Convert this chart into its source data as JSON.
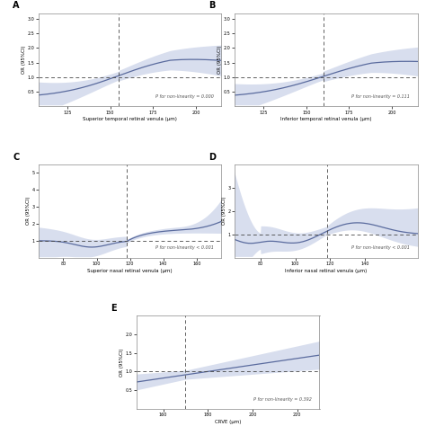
{
  "line_color": "#5a6b9e",
  "fill_color": "#b8c3e0",
  "fill_alpha": 0.55,
  "hline_color": "#444444",
  "vline_color": "#444444",
  "ylabel": "OR (95%CI)",
  "panels": [
    {
      "label": "A",
      "xlabel": "Superior temporal retinal venula (μm)",
      "pval": "P for non-linearity = 0.000",
      "xmin": 108,
      "xmax": 215,
      "xticks": [
        125,
        150,
        175,
        200
      ],
      "ymin": 0.0,
      "ymax": 3.2,
      "yticks": [
        0.5,
        1.0,
        1.5,
        2.0,
        2.5,
        3.0
      ],
      "vline_x": 155,
      "hline_y": 1.0,
      "curve_shape": "A"
    },
    {
      "label": "B",
      "xlabel": "Inferior temporal retinal venula (μm)",
      "pval": "P for non-linearity = 0.111",
      "xmin": 108,
      "xmax": 215,
      "xticks": [
        125,
        150,
        175,
        200
      ],
      "ymin": 0.0,
      "ymax": 3.2,
      "yticks": [
        0.5,
        1.0,
        1.5,
        2.0,
        2.5,
        3.0
      ],
      "vline_x": 160,
      "hline_y": 1.0,
      "curve_shape": "B"
    },
    {
      "label": "C",
      "xlabel": "Superior nasal retinal venula (μm)",
      "pval": "P for non-linearity < 0.001",
      "xmin": 65,
      "xmax": 175,
      "xticks": [
        80,
        100,
        120,
        140,
        160
      ],
      "ymin": 0.0,
      "ymax": 5.5,
      "yticks": [
        1.0,
        2.0,
        3.0,
        4.0,
        5.0
      ],
      "vline_x": 118,
      "hline_y": 1.0,
      "curve_shape": "C"
    },
    {
      "label": "D",
      "xlabel": "Inferior nasal retinal venula (μm)",
      "pval": "P for non-linearity < 0.001",
      "xmin": 65,
      "xmax": 170,
      "xticks": [
        80,
        100,
        120,
        140
      ],
      "ymin": 0.0,
      "ymax": 4.0,
      "yticks": [
        1.0,
        2.0,
        3.0
      ],
      "vline_x": 118,
      "hline_y": 1.0,
      "curve_shape": "D"
    },
    {
      "label": "E",
      "xlabel": "CRVE (μm)",
      "pval": "P for non-linearity = 0.392",
      "xmin": 148,
      "xmax": 230,
      "xticks": [
        160,
        180,
        200,
        220
      ],
      "ymin": 0.0,
      "ymax": 2.5,
      "yticks": [
        0.5,
        1.0,
        1.5,
        2.0
      ],
      "vline_x": 170,
      "hline_y": 1.0,
      "curve_shape": "E"
    }
  ]
}
